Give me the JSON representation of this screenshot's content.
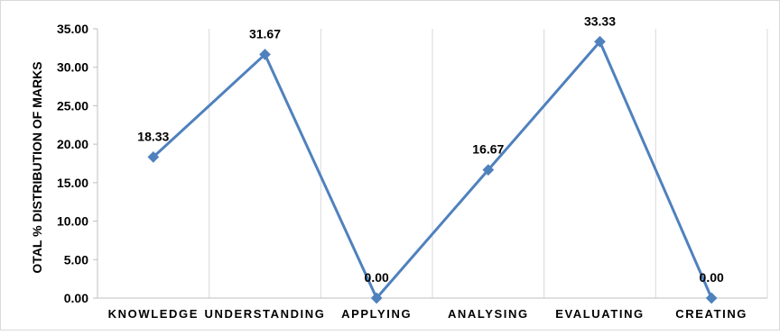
{
  "chart_data": {
    "type": "line",
    "title": "",
    "xlabel": "",
    "ylabel": "OTAL % DISTRIBUTION OF MARKS",
    "categories": [
      "KNOWLEDGE",
      "UNDERSTANDING",
      "APPLYING",
      "ANALYSING",
      "EVALUATING",
      "CREATING"
    ],
    "series": [
      {
        "values": [
          18.33,
          31.67,
          0.0,
          16.67,
          33.33,
          0.0
        ]
      }
    ],
    "data_labels": [
      "18.33",
      "31.67",
      "0.00",
      "16.67",
      "33.33",
      "0.00"
    ],
    "y_ticks": [
      "0.00",
      "5.00",
      "10.00",
      "15.00",
      "20.00",
      "25.00",
      "30.00",
      "35.00"
    ],
    "ylim": [
      0,
      35
    ],
    "grid": "vertical",
    "line_color": "#4F81BD"
  }
}
